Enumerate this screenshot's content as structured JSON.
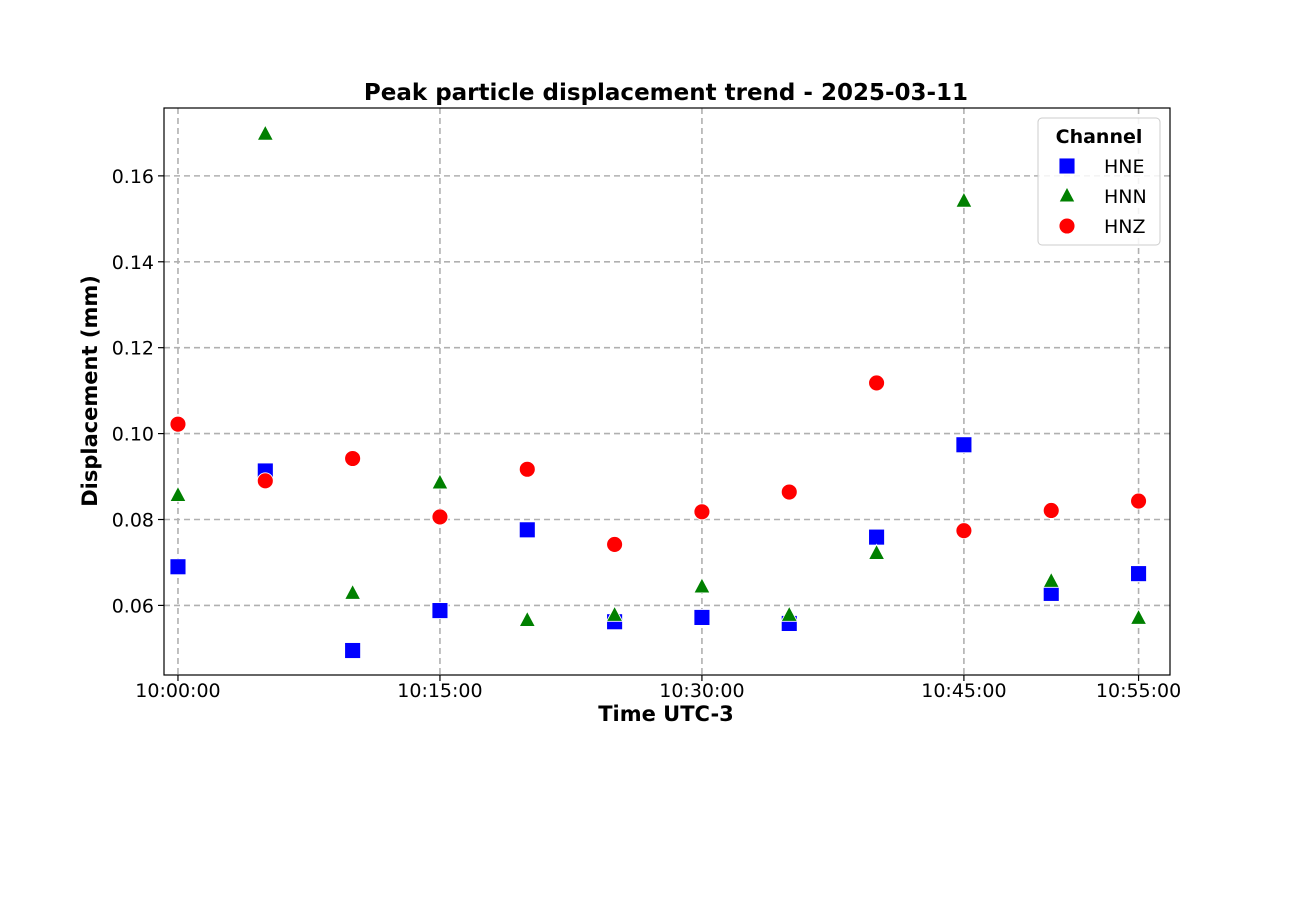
{
  "chart_data": {
    "type": "scatter",
    "title": "Peak particle displacement trend - 2025-03-11",
    "xlabel": "Time UTC-3",
    "ylabel": "Displacement (mm)",
    "x_ticks": [
      "10:00:00",
      "10:15:00",
      "10:30:00",
      "10:45:00",
      "10:55:00"
    ],
    "y_ticks": [
      "0.06",
      "0.08",
      "0.10",
      "0.12",
      "0.14",
      "0.16"
    ],
    "ylim": [
      0.0438,
      0.1758
    ],
    "xlim": [
      "09:59:12",
      "10:56:48"
    ],
    "grid": true,
    "legend": {
      "title": "Channel",
      "placement": "top-right",
      "entries": [
        "HNE",
        "HNN",
        "HNZ"
      ]
    },
    "series": [
      {
        "name": "HNE",
        "marker": "square",
        "color": "#0000ff",
        "points": [
          {
            "x": "10:00:00",
            "y": 0.069
          },
          {
            "x": "10:05:00",
            "y": 0.0913
          },
          {
            "x": "10:10:00",
            "y": 0.0495
          },
          {
            "x": "10:15:00",
            "y": 0.0588
          },
          {
            "x": "10:20:00",
            "y": 0.0776
          },
          {
            "x": "10:25:00",
            "y": 0.0562
          },
          {
            "x": "10:30:00",
            "y": 0.0572
          },
          {
            "x": "10:35:00",
            "y": 0.0558
          },
          {
            "x": "10:40:00",
            "y": 0.0759
          },
          {
            "x": "10:45:00",
            "y": 0.0974
          },
          {
            "x": "10:50:00",
            "y": 0.0628
          },
          {
            "x": "10:55:00",
            "y": 0.0674
          }
        ]
      },
      {
        "name": "HNN",
        "marker": "triangle",
        "color": "#008000",
        "points": [
          {
            "x": "10:00:00",
            "y": 0.0856
          },
          {
            "x": "10:05:00",
            "y": 0.1697
          },
          {
            "x": "10:10:00",
            "y": 0.0628
          },
          {
            "x": "10:15:00",
            "y": 0.0885
          },
          {
            "x": "10:20:00",
            "y": 0.0565
          },
          {
            "x": "10:25:00",
            "y": 0.0577
          },
          {
            "x": "10:30:00",
            "y": 0.0643
          },
          {
            "x": "10:35:00",
            "y": 0.0577
          },
          {
            "x": "10:40:00",
            "y": 0.0721
          },
          {
            "x": "10:45:00",
            "y": 0.1541
          },
          {
            "x": "10:50:00",
            "y": 0.0656
          },
          {
            "x": "10:55:00",
            "y": 0.057
          }
        ]
      },
      {
        "name": "HNZ",
        "marker": "circle",
        "color": "#ff0000",
        "points": [
          {
            "x": "10:00:00",
            "y": 0.1022
          },
          {
            "x": "10:05:00",
            "y": 0.089
          },
          {
            "x": "10:10:00",
            "y": 0.0942
          },
          {
            "x": "10:15:00",
            "y": 0.0806
          },
          {
            "x": "10:20:00",
            "y": 0.0917
          },
          {
            "x": "10:25:00",
            "y": 0.0742
          },
          {
            "x": "10:30:00",
            "y": 0.0818
          },
          {
            "x": "10:35:00",
            "y": 0.0864
          },
          {
            "x": "10:40:00",
            "y": 0.1118
          },
          {
            "x": "10:45:00",
            "y": 0.0774
          },
          {
            "x": "10:50:00",
            "y": 0.0821
          },
          {
            "x": "10:55:00",
            "y": 0.0843
          }
        ]
      }
    ]
  }
}
